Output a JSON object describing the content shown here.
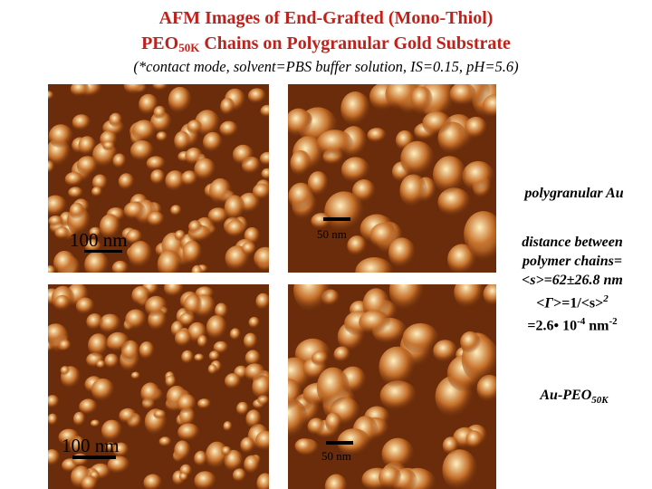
{
  "title": {
    "line1": "AFM Images of End-Grafted (Mono-Thiol)",
    "line2_prefix": "PEO",
    "line2_sub": "50K",
    "line2_suffix": " Chains on Polygranular Gold Substrate"
  },
  "subtitle": "(*contact mode, solvent=PBS buffer solution, IS=0.15, pH=5.6)",
  "images": [
    {
      "scale_label": "100 nm"
    },
    {
      "scale_label": "50 nm"
    },
    {
      "scale_label": "100 nm"
    },
    {
      "scale_label": "50 nm"
    }
  ],
  "labels": {
    "polygranular": "polygranular Au",
    "distance_line1": "distance between",
    "distance_line2": "polymer chains=",
    "s_text": "<s>=62±26.8 nm",
    "gamma_prefix": "<",
    "gamma_symbol": "Γ",
    "gamma_suffix": ">=1/<s>",
    "gamma_exp": "2",
    "density_prefix": "=2.6• 10",
    "density_exp1": "-4",
    "density_unit": " nm",
    "density_exp2": "-2",
    "sample_prefix": "Au-PEO",
    "sample_sub": "50K"
  },
  "colors": {
    "title": "#c0221b",
    "afm_dark": "#6a2c0a",
    "afm_mid": "#c76f28",
    "afm_light": "#fff0c0"
  }
}
